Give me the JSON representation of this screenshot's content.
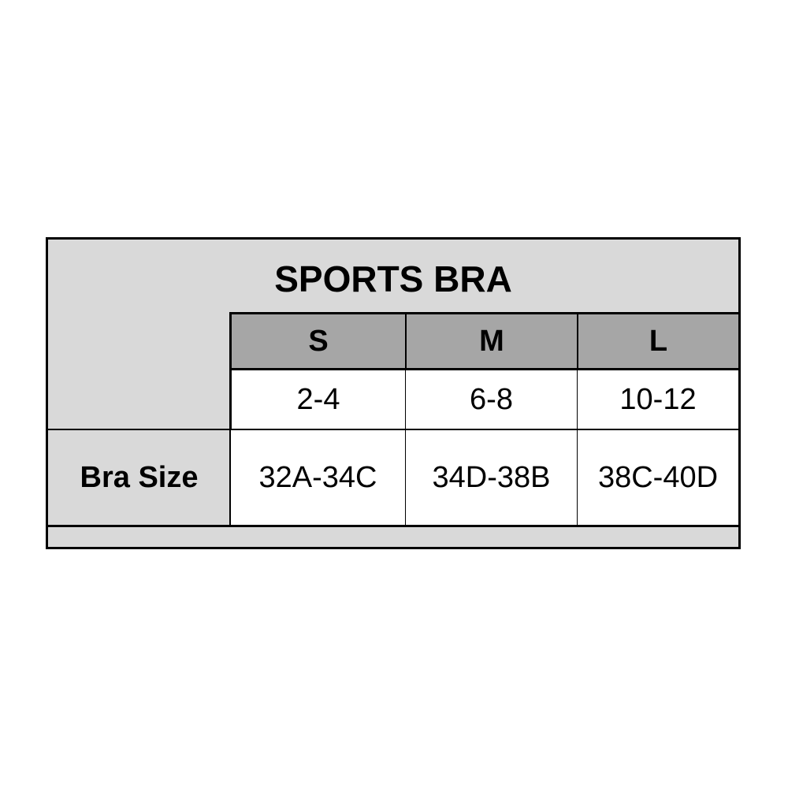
{
  "title": "SPORTS BRA",
  "columns": [
    "S",
    "M",
    "L"
  ],
  "rows": [
    {
      "label": "",
      "values": [
        "2-4",
        "6-8",
        "10-12"
      ]
    },
    {
      "label": "Bra Size",
      "values": [
        "32A-34C",
        "34D-38B",
        "38C-40D"
      ]
    }
  ],
  "colors": {
    "header_bg": "#a6a6a6",
    "panel_bg": "#d9d9d9",
    "cell_bg": "#ffffff",
    "border": "#000000"
  }
}
